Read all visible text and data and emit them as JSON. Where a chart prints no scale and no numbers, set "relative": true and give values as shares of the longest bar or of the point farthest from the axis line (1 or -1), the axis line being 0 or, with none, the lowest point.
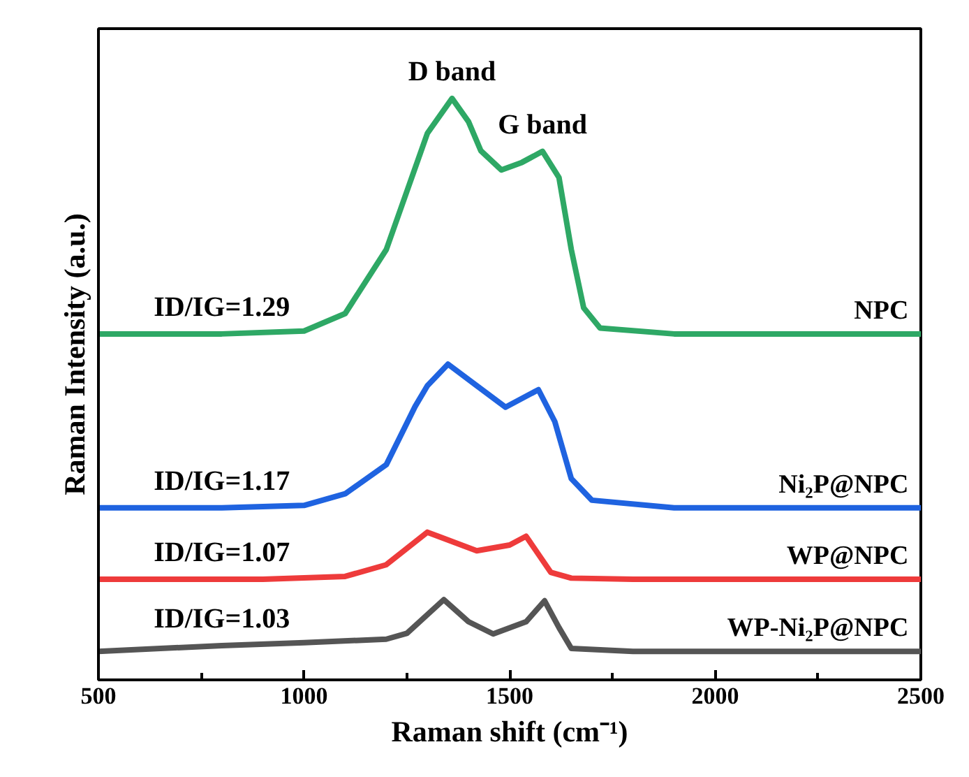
{
  "chart_data": {
    "type": "line",
    "relative": true,
    "xlabel": "Raman shift (cm⁻¹)",
    "ylabel": "Raman Intensity (a.u.)",
    "xlim": [
      500,
      2500
    ],
    "xticks": [
      500,
      {
        "value": 750,
        "label": null
      },
      1000,
      {
        "value": 1250,
        "label": null
      },
      1500,
      {
        "value": 1750,
        "label": null
      },
      2000,
      {
        "value": 2250,
        "label": null
      },
      2500
    ],
    "grid": false,
    "tick_labels": "x",
    "line_style": "solid",
    "marker": "none",
    "series": [
      {
        "name": "NPC",
        "color": "#2ea865",
        "x": [
          500,
          800,
          1000,
          1100,
          1200,
          1250,
          1300,
          1360,
          1400,
          1430,
          1480,
          1530,
          1580,
          1620,
          1650,
          1680,
          1720,
          1900,
          2200,
          2500
        ],
        "values": [
          0.595,
          0.595,
          0.6,
          0.63,
          0.74,
          0.84,
          0.94,
          1.0,
          0.96,
          0.91,
          0.877,
          0.89,
          0.909,
          0.864,
          0.74,
          0.64,
          0.605,
          0.595,
          0.595,
          0.595
        ]
      },
      {
        "name": "Ni₂P@NPC",
        "color": "#1f63e0",
        "x": [
          500,
          800,
          1000,
          1100,
          1200,
          1270,
          1300,
          1350,
          1420,
          1490,
          1570,
          1610,
          1650,
          1700,
          1900,
          2200,
          2500
        ],
        "values": [
          0.296,
          0.296,
          0.3,
          0.32,
          0.37,
          0.47,
          0.506,
          0.543,
          0.506,
          0.469,
          0.499,
          0.444,
          0.346,
          0.309,
          0.296,
          0.296,
          0.296
        ]
      },
      {
        "name": "WP@NPC",
        "color": "#ee3b3b",
        "x": [
          500,
          900,
          1100,
          1200,
          1300,
          1420,
          1500,
          1540,
          1600,
          1650,
          1800,
          2500
        ],
        "values": [
          0.173,
          0.173,
          0.178,
          0.198,
          0.254,
          0.222,
          0.232,
          0.247,
          0.185,
          0.175,
          0.173,
          0.173
        ]
      },
      {
        "name": "WP-Ni₂P@NPC",
        "color": "#555555",
        "x": [
          500,
          800,
          1000,
          1200,
          1250,
          1340,
          1400,
          1460,
          1540,
          1585,
          1620,
          1650,
          1800,
          2500
        ],
        "values": [
          0.049,
          0.059,
          0.064,
          0.07,
          0.08,
          0.138,
          0.1,
          0.079,
          0.1,
          0.136,
          0.09,
          0.054,
          0.049,
          0.049
        ]
      }
    ],
    "annotations": [
      {
        "text": "D band",
        "x": 1360,
        "y": 1.0
      },
      {
        "text": "G band",
        "x": 1580,
        "y": 0.909
      },
      {
        "text": "ID/IG=1.29",
        "x": 800,
        "y": 0.595
      },
      {
        "text": "ID/IG=1.17",
        "x": 800,
        "y": 0.296
      },
      {
        "text": "ID/IG=1.07",
        "x": 800,
        "y": 0.173
      },
      {
        "text": "ID/IG=1.03",
        "x": 800,
        "y": 0.059
      }
    ]
  }
}
